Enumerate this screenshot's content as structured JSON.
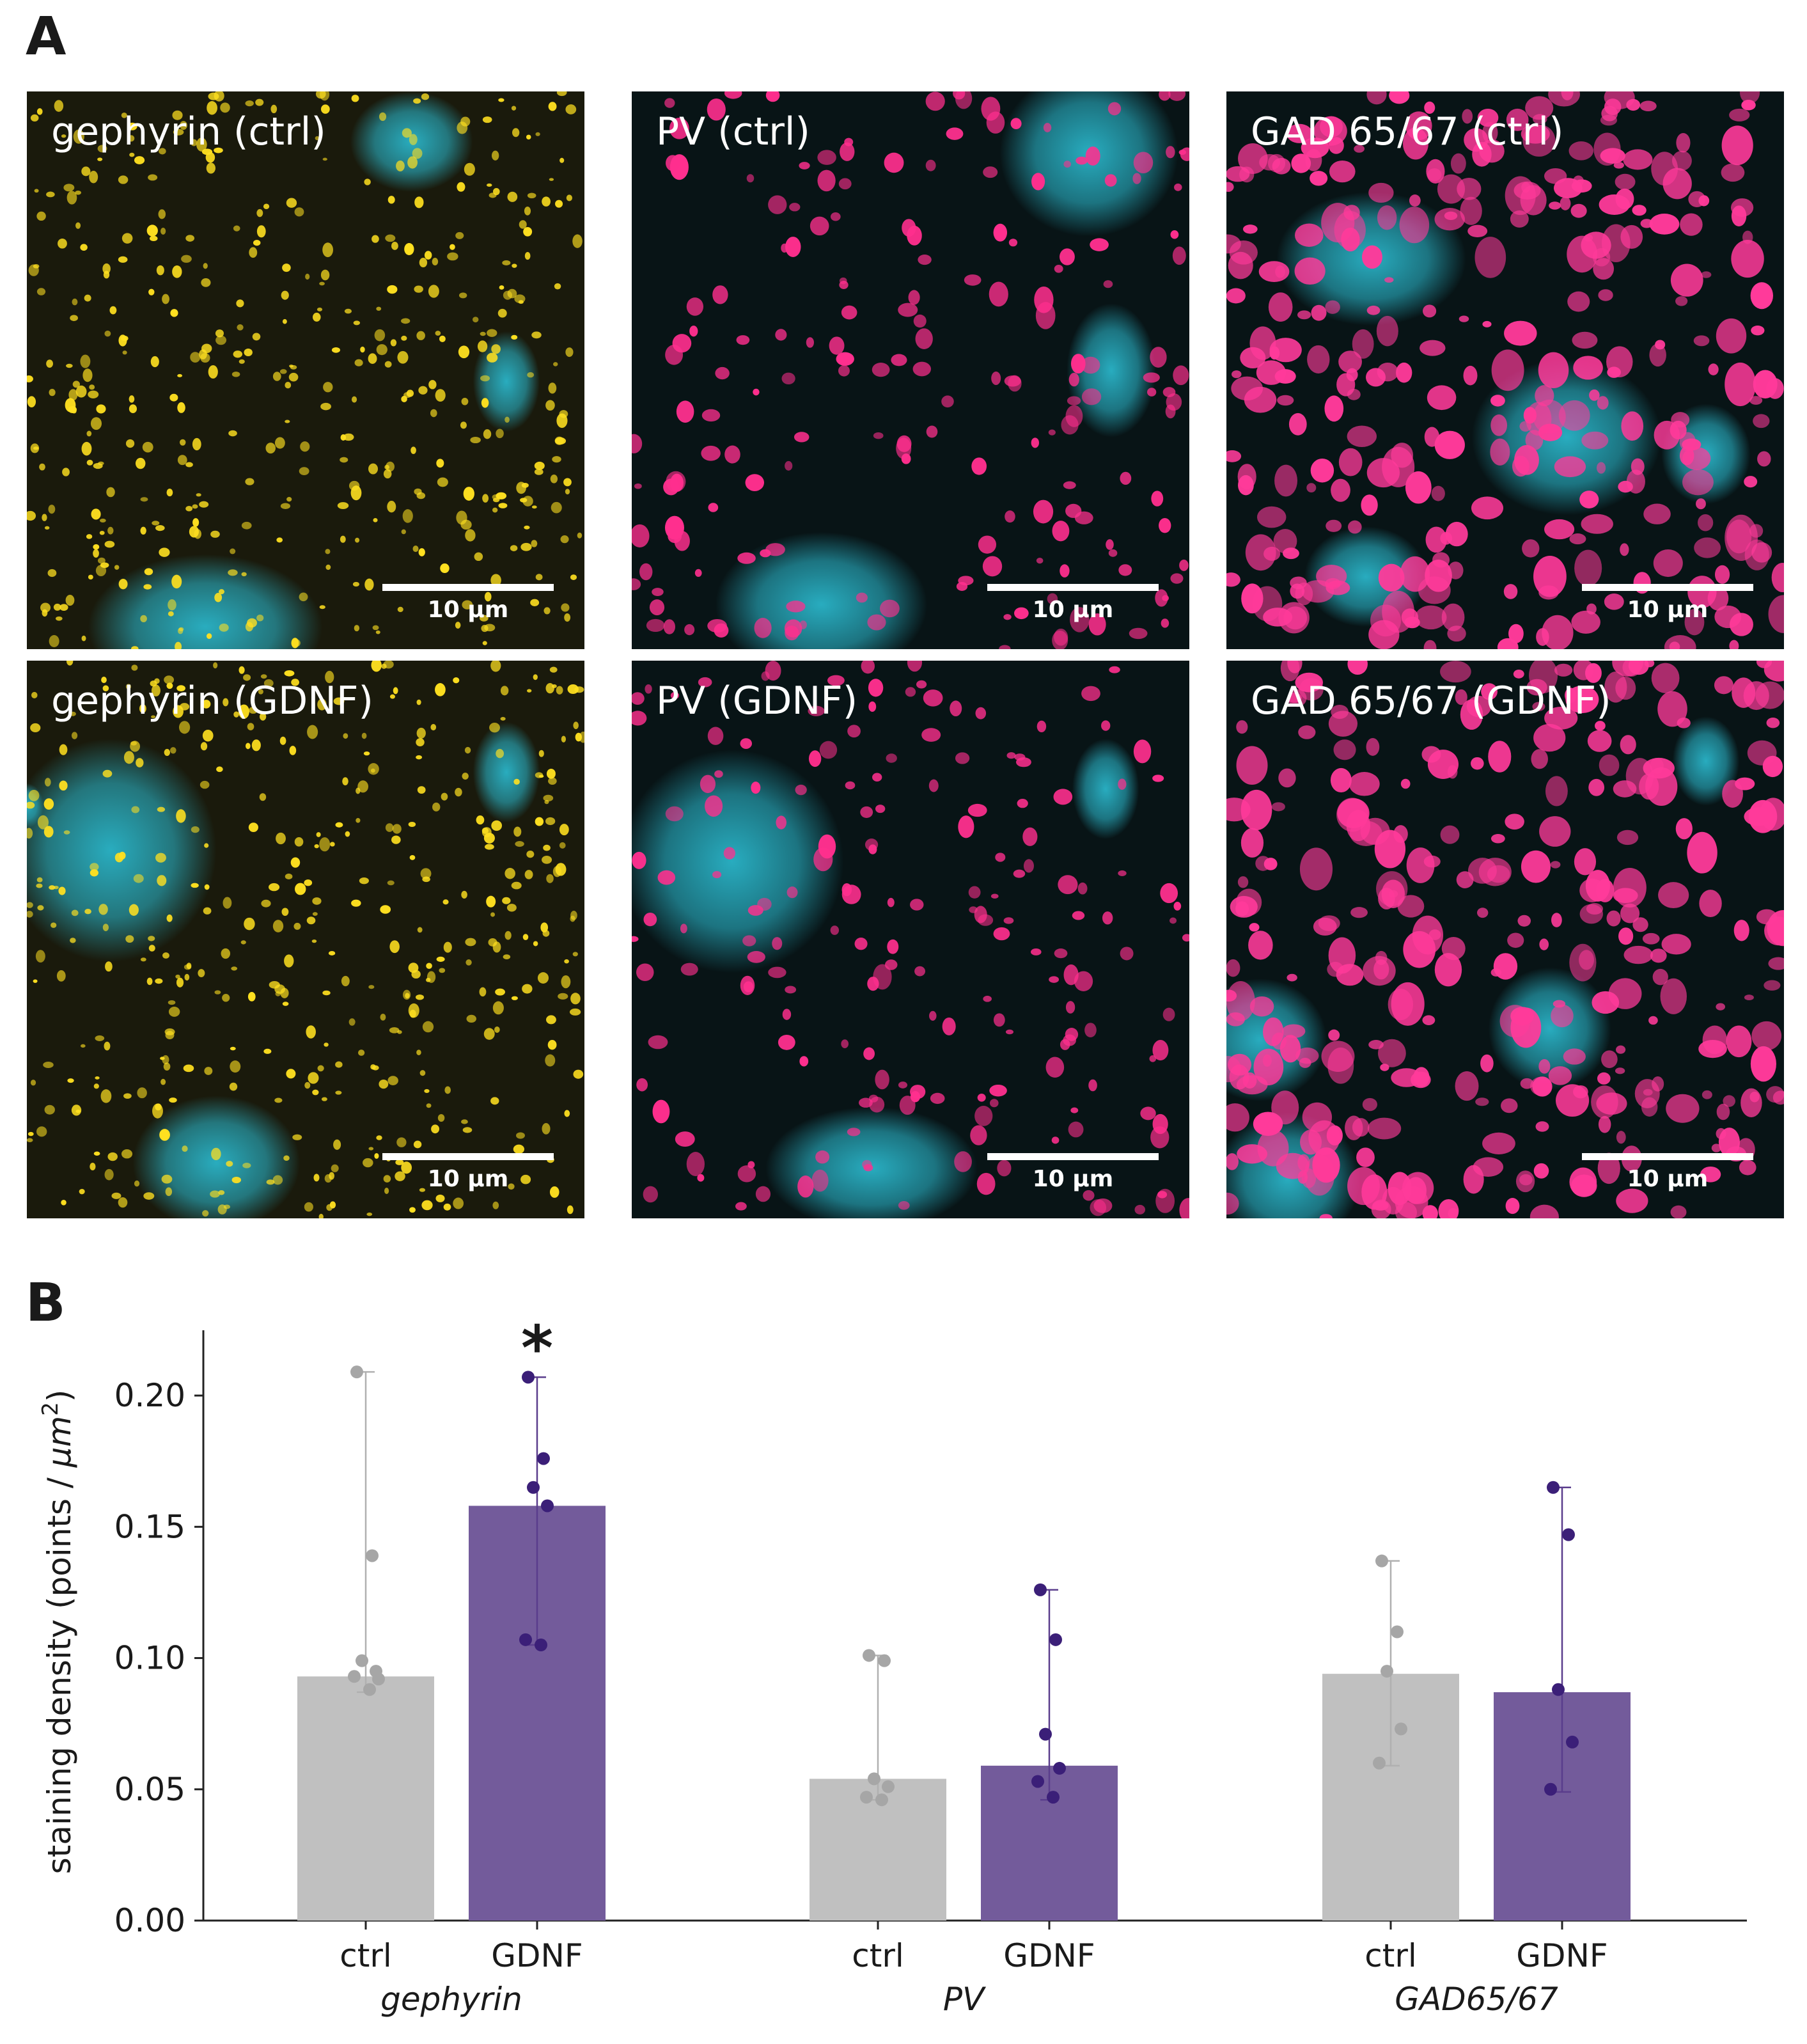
{
  "panel_letters": {
    "a": "A",
    "b": "B"
  },
  "micrographs": [
    {
      "label": "gephyrin (ctrl)",
      "scale": "10 µm",
      "puncta_color": "#ffe020",
      "style": "gephyrin"
    },
    {
      "label": "PV (ctrl)",
      "scale": "10 µm",
      "puncta_color": "#ff2f8e",
      "style": "pv"
    },
    {
      "label": "GAD 65/67 (ctrl)",
      "scale": "10 µm",
      "puncta_color": "#ff3a9a",
      "style": "gad"
    },
    {
      "label": "gephyrin (GDNF)",
      "scale": "10 µm",
      "puncta_color": "#ffe020",
      "style": "gephyrin"
    },
    {
      "label": "PV (GDNF)",
      "scale": "10 µm",
      "puncta_color": "#ff2f8e",
      "style": "pv"
    },
    {
      "label": "GAD 65/67 (GDNF)",
      "scale": "10 µm",
      "puncta_color": "#ff3a9a",
      "style": "gad"
    }
  ],
  "colors": {
    "ctrl": "#c0c0c0",
    "gdnf": "#735b9b",
    "ctrl_point": "#a6a6a6",
    "gdnf_point": "#3b1f78",
    "nuclei": "#2ab4c8"
  },
  "chart_data": {
    "type": "bar",
    "ylabel_prefix": "staining density (points / ",
    "ylabel_unit": "µm",
    "ylabel_exp": "2",
    "ylabel_suffix": ")",
    "ylim": [
      0,
      0.22
    ],
    "yticks": [
      "0.00",
      "0.05",
      "0.10",
      "0.15",
      "0.20"
    ],
    "groups": [
      {
        "name": "gephyrin",
        "bars": [
          {
            "label": "ctrl",
            "series": "ctrl",
            "value": 0.093,
            "err_low": 0.087,
            "err_high": 0.209,
            "points": [
              0.209,
              0.139,
              0.099,
              0.095,
              0.093,
              0.088,
              0.092
            ]
          },
          {
            "label": "GDNF",
            "series": "gdnf",
            "value": 0.158,
            "err_low": 0.105,
            "err_high": 0.207,
            "points": [
              0.207,
              0.176,
              0.165,
              0.158,
              0.107,
              0.105
            ],
            "significance": "*"
          }
        ]
      },
      {
        "name": "PV",
        "bars": [
          {
            "label": "ctrl",
            "series": "ctrl",
            "value": 0.054,
            "err_low": 0.046,
            "err_high": 0.101,
            "points": [
              0.101,
              0.099,
              0.054,
              0.051,
              0.047,
              0.046
            ]
          },
          {
            "label": "GDNF",
            "series": "gdnf",
            "value": 0.059,
            "err_low": 0.046,
            "err_high": 0.126,
            "points": [
              0.126,
              0.107,
              0.071,
              0.058,
              0.053,
              0.047
            ]
          }
        ]
      },
      {
        "name": "GAD65/67",
        "bars": [
          {
            "label": "ctrl",
            "series": "ctrl",
            "value": 0.094,
            "err_low": 0.059,
            "err_high": 0.137,
            "points": [
              0.137,
              0.11,
              0.095,
              0.073,
              0.06
            ]
          },
          {
            "label": "GDNF",
            "series": "gdnf",
            "value": 0.087,
            "err_low": 0.049,
            "err_high": 0.165,
            "points": [
              0.165,
              0.147,
              0.088,
              0.068,
              0.05
            ]
          }
        ]
      }
    ]
  }
}
